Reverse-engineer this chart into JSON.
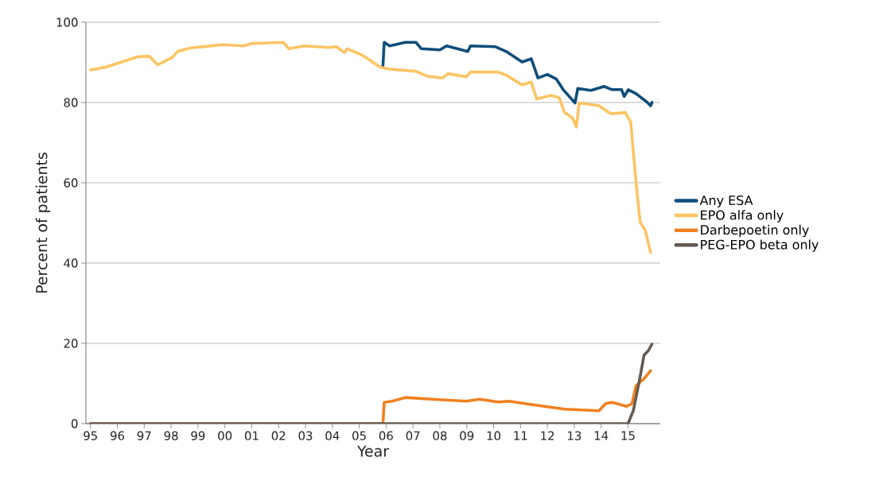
{
  "chart_data": {
    "type": "line",
    "xlabel": "Year",
    "ylabel": "Percent of patients",
    "xlim": [
      1994.83,
      2016.2
    ],
    "ylim": [
      0,
      100
    ],
    "xticks": [
      {
        "value": 1995,
        "label": "95"
      },
      {
        "value": 1996,
        "label": "96"
      },
      {
        "value": 1997,
        "label": "97"
      },
      {
        "value": 1998,
        "label": "98"
      },
      {
        "value": 1999,
        "label": "99"
      },
      {
        "value": 2000,
        "label": "00"
      },
      {
        "value": 2001,
        "label": "01"
      },
      {
        "value": 2002,
        "label": "02"
      },
      {
        "value": 2003,
        "label": "03"
      },
      {
        "value": 2004,
        "label": "04"
      },
      {
        "value": 2005,
        "label": "05"
      },
      {
        "value": 2006,
        "label": "06"
      },
      {
        "value": 2007,
        "label": "07"
      },
      {
        "value": 2008,
        "label": "08"
      },
      {
        "value": 2009,
        "label": "09"
      },
      {
        "value": 2010,
        "label": "10"
      },
      {
        "value": 2011,
        "label": "11"
      },
      {
        "value": 2012,
        "label": "12"
      },
      {
        "value": 2013,
        "label": "13"
      },
      {
        "value": 2014,
        "label": "14"
      },
      {
        "value": 2015,
        "label": "15"
      }
    ],
    "yticks": [
      0,
      20,
      40,
      60,
      80,
      100
    ],
    "grid": "y",
    "legend": "right",
    "series": [
      {
        "name": "Any ESA",
        "color": "#0e4d7a",
        "x": [
          2005.88,
          2005.93,
          2006.13,
          2006.72,
          2007.11,
          2007.31,
          2008.0,
          2008.25,
          2009.04,
          2009.14,
          2010.07,
          2010.47,
          2011.06,
          2011.4,
          2011.65,
          2012.0,
          2012.34,
          2012.59,
          2013.03,
          2013.13,
          2013.62,
          2014.11,
          2014.41,
          2014.76,
          2014.86,
          2015.01,
          2015.3,
          2015.69,
          2015.84,
          2015.89
        ],
        "values": [
          89.1,
          95.0,
          94.1,
          95.0,
          95.0,
          93.4,
          93.1,
          94.1,
          92.7,
          94.1,
          93.9,
          92.7,
          90.1,
          90.9,
          86.1,
          87.0,
          85.8,
          83.2,
          79.9,
          83.5,
          83.0,
          84.0,
          83.2,
          83.2,
          81.5,
          83.2,
          82.2,
          80.2,
          79.2,
          80.0
        ]
      },
      {
        "name": "EPO alfa only",
        "color": "#fcc463",
        "x": [
          1995.0,
          1995.57,
          1996.07,
          1996.76,
          1997.2,
          1997.5,
          1998.04,
          1998.24,
          1998.73,
          1999.91,
          2000.7,
          2001.0,
          2002.18,
          2002.38,
          2002.97,
          2003.86,
          2004.15,
          2004.45,
          2004.55,
          2005.14,
          2005.78,
          2006.13,
          2007.11,
          2007.51,
          2008.1,
          2008.3,
          2008.99,
          2009.14,
          2010.17,
          2010.47,
          2011.06,
          2011.4,
          2011.6,
          2012.14,
          2012.44,
          2012.64,
          2012.93,
          2013.08,
          2013.18,
          2013.92,
          2014.36,
          2014.9,
          2015.1,
          2015.3,
          2015.45,
          2015.64,
          2015.84
        ],
        "values": [
          88.1,
          88.8,
          89.9,
          91.4,
          91.5,
          89.4,
          91.2,
          92.7,
          93.6,
          94.4,
          94.1,
          94.7,
          95.0,
          93.4,
          94.1,
          93.7,
          93.9,
          92.4,
          93.4,
          91.7,
          88.8,
          88.3,
          87.8,
          86.6,
          86.1,
          87.2,
          86.4,
          87.6,
          87.6,
          86.8,
          84.4,
          85.1,
          80.9,
          81.8,
          81.2,
          77.5,
          76.2,
          73.9,
          79.9,
          79.2,
          77.2,
          77.5,
          75.2,
          60.0,
          50.2,
          48.2,
          42.6
        ]
      },
      {
        "name": "Darbepoetin only",
        "color": "#f0801f",
        "x": [
          1995.0,
          2005.88,
          2005.93,
          2006.22,
          2006.72,
          2007.7,
          2008.99,
          2009.48,
          2010.17,
          2010.57,
          2011.36,
          2012.64,
          2013.92,
          2014.17,
          2014.41,
          2014.95,
          2015.15,
          2015.3,
          2015.6,
          2015.84
        ],
        "values": [
          0,
          0,
          5.3,
          5.6,
          6.5,
          6.1,
          5.6,
          6.1,
          5.4,
          5.6,
          4.8,
          3.6,
          3.2,
          5.0,
          5.3,
          4.3,
          5.0,
          9.5,
          11.2,
          13.2
        ]
      },
      {
        "name": "PEG-EPO beta only",
        "color": "#655a52",
        "x": [
          1995.0,
          2015.0,
          2015.2,
          2015.4,
          2015.6,
          2015.75,
          2015.89
        ],
        "values": [
          0,
          0,
          3.3,
          9.9,
          17.1,
          18.1,
          19.8
        ]
      }
    ]
  }
}
